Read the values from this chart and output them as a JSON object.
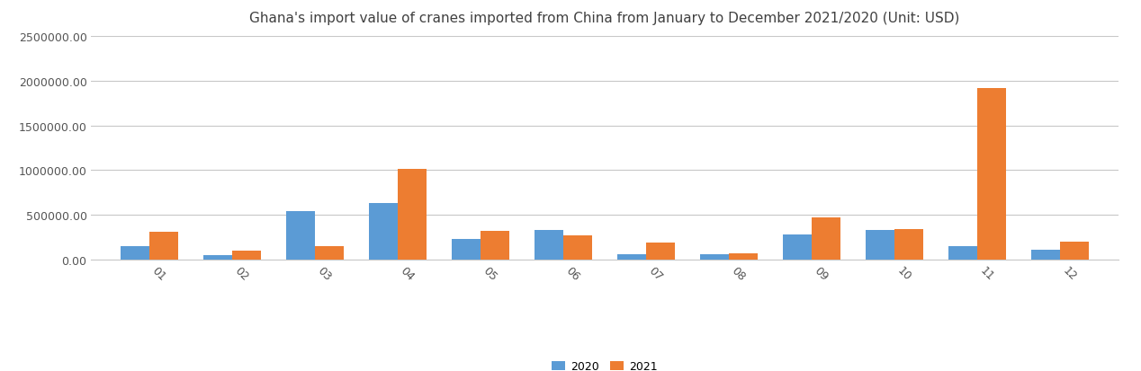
{
  "title": "Ghana's import value of cranes imported from China from January to December 2021/2020 (Unit: USD)",
  "months": [
    "01",
    "02",
    "03",
    "04",
    "05",
    "06",
    "07",
    "08",
    "09",
    "10",
    "11",
    "12"
  ],
  "values_2020": [
    150000,
    50000,
    540000,
    630000,
    230000,
    330000,
    55000,
    55000,
    280000,
    330000,
    150000,
    110000
  ],
  "values_2021": [
    310000,
    95000,
    150000,
    1010000,
    320000,
    270000,
    190000,
    70000,
    470000,
    340000,
    1920000,
    195000
  ],
  "color_2020": "#5b9bd5",
  "color_2021": "#ed7d31",
  "legend_labels": [
    "2020",
    "2021"
  ],
  "ylim": [
    0,
    2500000
  ],
  "yticks": [
    0,
    500000,
    1000000,
    1500000,
    2000000,
    2500000
  ],
  "ytick_labels": [
    "0.00",
    "500000.00",
    "1000000.00",
    "1500000.00",
    "2000000.00",
    "2500000.00"
  ],
  "bar_width": 0.35,
  "background_color": "#ffffff",
  "grid_color": "#c8c8c8",
  "title_fontsize": 11,
  "tick_fontsize": 9,
  "legend_fontsize": 9,
  "label_rotation": -45,
  "label_ha": "left"
}
